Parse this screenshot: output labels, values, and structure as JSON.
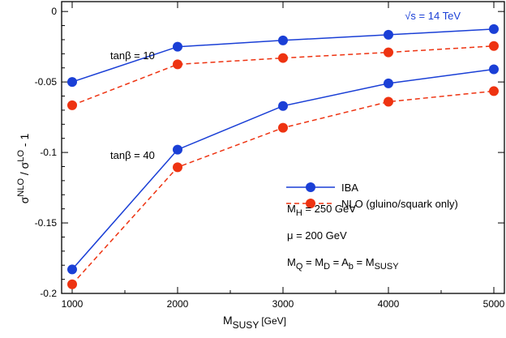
{
  "chart_data": {
    "type": "line",
    "title": "",
    "xlabel": "M",
    "xlabel_sub": "SUSY",
    "xlabel_unit": "[GeV]",
    "ylabel_sigma1": "σ",
    "ylabel_sup1": "NLO",
    "ylabel_slash": " / σ",
    "ylabel_sup2": "LO",
    "ylabel_tail": " - 1",
    "xlim": [
      900,
      5100
    ],
    "ylim": [
      -0.2,
      0.007
    ],
    "x_ticks": [
      1000,
      2000,
      3000,
      4000,
      5000
    ],
    "x_tick_labels": [
      "1000",
      "2000",
      "3000",
      "4000",
      "5000"
    ],
    "y_ticks": [
      0,
      -0.05,
      -0.1,
      -0.15,
      -0.2
    ],
    "y_tick_labels": [
      "0",
      "-0.05",
      "-0.1",
      "-0.15",
      "-0.2"
    ],
    "x": [
      1000,
      2000,
      3000,
      4000,
      5000
    ],
    "series": [
      {
        "name": "IBA",
        "group": "tanβ = 10",
        "color": "#1a3fd6",
        "dashed": false,
        "values": [
          -0.05,
          -0.025,
          -0.0205,
          -0.0165,
          -0.0125
        ]
      },
      {
        "name": "NLO (gluino/squark only)",
        "group": "tanβ = 10",
        "color": "#ee3311",
        "dashed": true,
        "values": [
          -0.0665,
          -0.0375,
          -0.033,
          -0.029,
          -0.0245
        ]
      },
      {
        "name": "IBA",
        "group": "tanβ = 40",
        "color": "#1a3fd6",
        "dashed": false,
        "values": [
          -0.183,
          -0.098,
          -0.067,
          -0.051,
          -0.041
        ]
      },
      {
        "name": "NLO (gluino/squark only)",
        "group": "tanβ = 40",
        "color": "#ee3311",
        "dashed": true,
        "values": [
          -0.1935,
          -0.1105,
          -0.0825,
          -0.064,
          -0.0565
        ]
      }
    ],
    "legend": [
      {
        "label": "IBA",
        "color": "#1a3fd6",
        "dashed": false
      },
      {
        "label": "NLO (gluino/squark only)",
        "color": "#ee3311",
        "dashed": true
      }
    ],
    "legend_position": "center-right",
    "annotations": {
      "energy": "√s = 14 TeV",
      "tanb10": "tanβ = 10",
      "tanb40": "tanβ = 40",
      "mh_main": "M",
      "mh_sub": "H",
      "mh_rest": " = 250 GeV",
      "mu": "μ = 200 GeV",
      "susy_m1": "M",
      "susy_q": "Q",
      "susy_eq1": " = M",
      "susy_d": "D",
      "susy_eq2": " = A",
      "susy_b": "b",
      "susy_eq3": " = M",
      "susy_susy": "SUSY"
    },
    "grid": false
  }
}
